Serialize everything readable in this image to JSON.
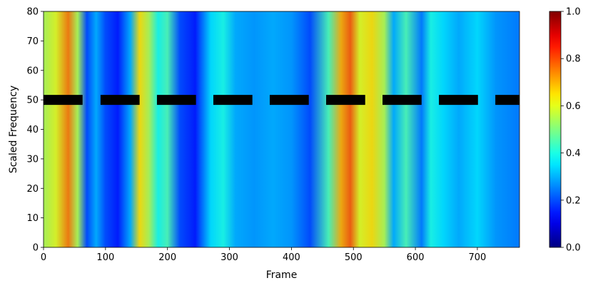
{
  "chart_data": {
    "type": "heatmap",
    "title": "",
    "xlabel": "Frame",
    "ylabel": "Scaled Frequency",
    "xlim": [
      0,
      768
    ],
    "ylim": [
      0,
      80
    ],
    "x_ticks": [
      0,
      100,
      200,
      300,
      400,
      500,
      600,
      700
    ],
    "y_ticks": [
      0,
      10,
      20,
      30,
      40,
      50,
      60,
      70,
      80
    ],
    "colormap": "jet",
    "colorbar": {
      "range": [
        0.0,
        1.0
      ],
      "ticks": [
        "0.0",
        "0.2",
        "0.4",
        "0.6",
        "0.8",
        "1.0"
      ]
    },
    "column_intensity_profile": [
      {
        "frame": 0,
        "level": 0.55
      },
      {
        "frame": 20,
        "level": 0.6
      },
      {
        "frame": 40,
        "level": 0.75
      },
      {
        "frame": 55,
        "level": 0.55
      },
      {
        "frame": 70,
        "level": 0.2
      },
      {
        "frame": 85,
        "level": 0.3
      },
      {
        "frame": 100,
        "level": 0.2
      },
      {
        "frame": 120,
        "level": 0.15
      },
      {
        "frame": 140,
        "level": 0.3
      },
      {
        "frame": 155,
        "level": 0.65
      },
      {
        "frame": 170,
        "level": 0.55
      },
      {
        "frame": 185,
        "level": 0.4
      },
      {
        "frame": 200,
        "level": 0.45
      },
      {
        "frame": 220,
        "level": 0.2
      },
      {
        "frame": 245,
        "level": 0.15
      },
      {
        "frame": 270,
        "level": 0.35
      },
      {
        "frame": 290,
        "level": 0.4
      },
      {
        "frame": 310,
        "level": 0.3
      },
      {
        "frame": 340,
        "level": 0.28
      },
      {
        "frame": 370,
        "level": 0.3
      },
      {
        "frame": 400,
        "level": 0.28
      },
      {
        "frame": 430,
        "level": 0.2
      },
      {
        "frame": 460,
        "level": 0.45
      },
      {
        "frame": 480,
        "level": 0.7
      },
      {
        "frame": 495,
        "level": 0.78
      },
      {
        "frame": 510,
        "level": 0.6
      },
      {
        "frame": 530,
        "level": 0.65
      },
      {
        "frame": 550,
        "level": 0.55
      },
      {
        "frame": 565,
        "level": 0.3
      },
      {
        "frame": 585,
        "level": 0.45
      },
      {
        "frame": 610,
        "level": 0.25
      },
      {
        "frame": 625,
        "level": 0.4
      },
      {
        "frame": 645,
        "level": 0.35
      },
      {
        "frame": 670,
        "level": 0.3
      },
      {
        "frame": 700,
        "level": 0.35
      },
      {
        "frame": 730,
        "level": 0.28
      },
      {
        "frame": 768,
        "level": 0.25
      }
    ],
    "mask_band": {
      "y_center": 50,
      "segments": [
        [
          0,
          63
        ],
        [
          92,
          155
        ],
        [
          183,
          246
        ],
        [
          274,
          337
        ],
        [
          365,
          428
        ],
        [
          456,
          519
        ],
        [
          547,
          610
        ],
        [
          638,
          701
        ],
        [
          729,
          768
        ]
      ]
    }
  }
}
